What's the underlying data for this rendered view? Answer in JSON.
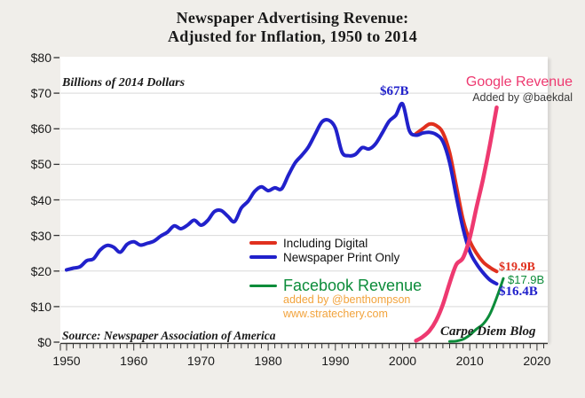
{
  "title": {
    "line1": "Newspaper Advertising Revenue:",
    "line2": "Adjusted for Inflation, 1950 to 2014"
  },
  "annotations": {
    "units_note": "Billions of 2014 Dollars",
    "google_label": "Google Revenue",
    "google_credit": "Added by @baekdal",
    "peak_label": "$67B",
    "including_digital_end": "$19.9B",
    "facebook_end": "$17.9B",
    "print_end": "$16.4B",
    "source_note": "Source: Newspaper Association of America",
    "blog_note": "Carpe Diem Blog"
  },
  "legend": {
    "including_digital": "Including Digital",
    "print_only": "Newspaper Print Only",
    "facebook": "Facebook Revenue",
    "facebook_credit": "added by @benthompson",
    "facebook_site": "www.stratechery.com"
  },
  "colors": {
    "background": "#f0eeea",
    "plot_background": "#ffffff",
    "gridline": "#d9d9d9",
    "axis": "#333333",
    "blue": "#2121CB",
    "red": "#E0301E",
    "pink": "#EE3970",
    "green": "#0C8C3A",
    "orange": "#F2A33C",
    "credit_gray": "#3a3a3a"
  },
  "chart_data": {
    "type": "line",
    "title": "Newspaper Advertising Revenue: Adjusted for Inflation, 1950 to 2014",
    "xlabel": "",
    "ylabel": "Billions of 2014 Dollars",
    "grid": true,
    "x_range": [
      1949.08,
      2021.6
    ],
    "y_range": [
      0,
      80.25
    ],
    "x_ticks": [
      1950,
      1960,
      1970,
      1980,
      1990,
      2000,
      2010,
      2020
    ],
    "x_minor_tick_years": [
      1950,
      2021
    ],
    "y_ticks": [
      {
        "value": 0,
        "label": "$0"
      },
      {
        "value": 10,
        "label": "$10"
      },
      {
        "value": 20,
        "label": "$20"
      },
      {
        "value": 30,
        "label": "$30"
      },
      {
        "value": 40,
        "label": "$40"
      },
      {
        "value": 50,
        "label": "$50"
      },
      {
        "value": 60,
        "label": "$60"
      },
      {
        "value": 70,
        "label": "$70"
      },
      {
        "value": 80,
        "label": "$80"
      }
    ],
    "y_gridlines": [
      10,
      20,
      30,
      40,
      50,
      60,
      70
    ],
    "legend_position": "center-right-inside",
    "series": [
      {
        "name": "Including Digital",
        "color": "#E0301E",
        "width": 4,
        "start_year": 2002,
        "values": [
          58.6,
          60,
          61.3,
          60.9,
          58.9,
          53.3,
          44,
          34.5,
          28.5,
          25,
          22.5,
          21,
          19.9
        ]
      },
      {
        "name": "Newspaper Print Only",
        "color": "#2121CB",
        "width": 4,
        "start_year": 1950,
        "values": [
          20.3,
          20.8,
          21.2,
          22.9,
          23.4,
          25.9,
          27.2,
          26.7,
          25.3,
          27.5,
          28.2,
          27.3,
          27.8,
          28.4,
          29.8,
          30.9,
          32.7,
          31.9,
          32.9,
          34.3,
          32.9,
          34.2,
          36.7,
          37,
          35.4,
          33.9,
          37.7,
          39.6,
          42.4,
          43.7,
          42.6,
          43.4,
          43.1,
          46.9,
          50.4,
          52.5,
          54.9,
          58.5,
          61.9,
          62.4,
          60.2,
          53.4,
          52.4,
          52.8,
          54.7,
          54.3,
          55.8,
          58.9,
          62.1,
          63.8,
          67,
          59.5,
          58.2,
          58.8,
          59,
          58.4,
          56.4,
          50.5,
          41,
          32,
          25.5,
          22,
          19.5,
          17.5,
          16.4
        ]
      },
      {
        "name": "Google Revenue",
        "color": "#EE3970",
        "width": 4.5,
        "start_year": 2002,
        "values": [
          0.4,
          1.5,
          3.2,
          6.1,
          10.6,
          16.6,
          21.8,
          23.7,
          29.3,
          37.9,
          46,
          55.5,
          66
        ]
      },
      {
        "name": "Facebook Revenue",
        "color": "#0C8C3A",
        "width": 3,
        "start_year": 2007,
        "values": [
          0.2,
          0.3,
          0.8,
          2,
          3.7,
          5.1,
          7.9,
          12.5,
          17.9
        ]
      }
    ]
  }
}
